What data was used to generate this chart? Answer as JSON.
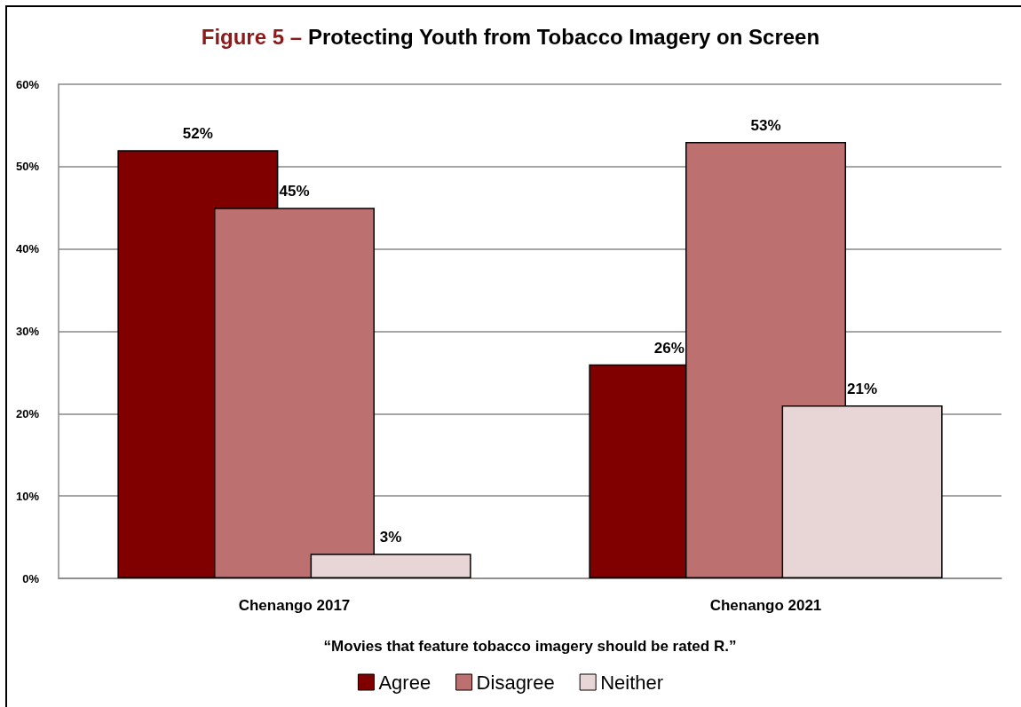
{
  "chart_data": {
    "type": "bar",
    "title": "Figure 5 – Protecting Youth from Tobacco Imagery on Screen",
    "xlabel": "“Movies that feature tobacco imagery should be rated R.”",
    "categories": [
      "Chenango 2017",
      "Chenango 2021"
    ],
    "series": [
      {
        "name": "Agree",
        "color": "#800000",
        "values": [
          52,
          26
        ],
        "value_labels": [
          "52%",
          "26%"
        ]
      },
      {
        "name": "Disagree",
        "color": "#bd7070",
        "values": [
          45,
          53
        ],
        "value_labels": [
          "45%",
          "53%"
        ]
      },
      {
        "name": "Neither",
        "color": "#e8d6d6",
        "values": [
          3,
          21
        ],
        "value_labels": [
          "3%",
          "21%"
        ]
      }
    ],
    "ylim": [
      0,
      60
    ],
    "yticks": [
      {
        "value": 0,
        "label": "0%"
      },
      {
        "value": 10,
        "label": "10%"
      },
      {
        "value": 20,
        "label": "20%"
      },
      {
        "value": 30,
        "label": "30%"
      },
      {
        "value": 40,
        "label": "40%"
      },
      {
        "value": 50,
        "label": "50%"
      },
      {
        "value": 60,
        "label": "60%"
      }
    ],
    "grid": "y",
    "legend": "bottom"
  }
}
